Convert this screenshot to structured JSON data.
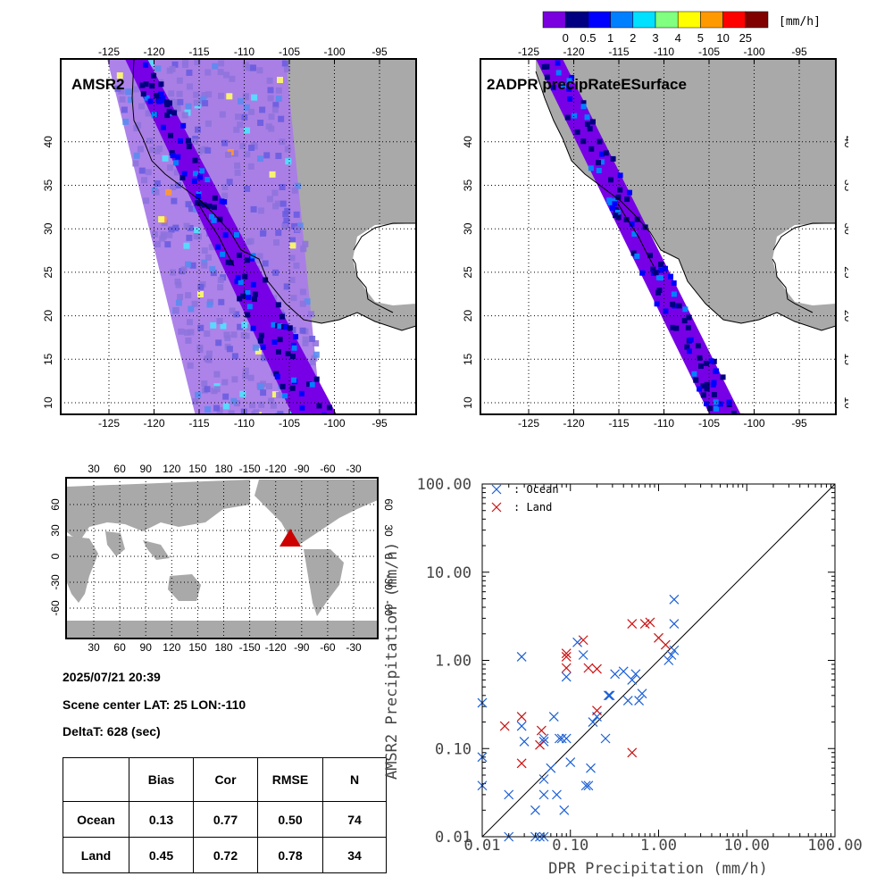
{
  "colorbar": {
    "unit": "[mm/h]",
    "tick_labels": [
      "0",
      "0.5",
      "1",
      "2",
      "3",
      "4",
      "5",
      "10",
      "25"
    ],
    "colors": [
      "#7b00e0",
      "#000080",
      "#0000ff",
      "#0080ff",
      "#00e0ff",
      "#80ff80",
      "#ffff00",
      "#ff9900",
      "#ff0000",
      "#800000"
    ]
  },
  "map_left": {
    "title": "AMSR2"
  },
  "map_right": {
    "title": "2ADPR precipRateESurface"
  },
  "map_axes": {
    "lon_labels": [
      "-125",
      "-120",
      "-115",
      "-110",
      "-105",
      "-100",
      "-95"
    ],
    "lat_labels": [
      "10",
      "15",
      "20",
      "25",
      "30",
      "35",
      "40"
    ]
  },
  "globe": {
    "top_lon_labels": [
      "30",
      "60",
      "90",
      "120",
      "150",
      "180",
      "-150",
      "-120",
      "-90",
      "-60",
      "-30"
    ],
    "bottom_lon_labels": [
      "30",
      "60",
      "90",
      "120",
      "150",
      "180",
      "-150",
      "-120",
      "-90",
      "-60",
      "-30"
    ],
    "lat_labels": [
      "60",
      "30",
      "0",
      "-30",
      "-60"
    ],
    "marker_color": "#cc0000"
  },
  "scene": {
    "datetime": "2025/07/21 20:39",
    "center": "Scene center LAT: 25   LON:-110",
    "delta": "DeltaT:  628 (sec)"
  },
  "stats": {
    "headers": [
      "",
      "Bias",
      "Cor",
      "RMSE",
      "N"
    ],
    "rows": [
      {
        "label": "Ocean",
        "bias": "0.13",
        "cor": "0.77",
        "rmse": "0.50",
        "n": "74"
      },
      {
        "label": "Land",
        "bias": "0.45",
        "cor": "0.72",
        "rmse": "0.78",
        "n": "34"
      }
    ]
  },
  "chart_data": {
    "type": "scatter",
    "xlabel": "DPR Precipitation (mm/h)",
    "ylabel": "AMSR2 Precipitation (mm/h)",
    "xscale": "log",
    "yscale": "log",
    "xlim": [
      0.01,
      100
    ],
    "ylim": [
      0.01,
      100
    ],
    "tick_labels": [
      "0.01",
      "0.10",
      "1.00",
      "10.00",
      "100.00"
    ],
    "reference_line": "1:1",
    "legend_position": "top-left",
    "series": [
      {
        "name": ": Ocean",
        "color": "#1a5fd6",
        "points": [
          [
            0.01,
            0.33
          ],
          [
            0.01,
            0.08
          ],
          [
            0.01,
            0.038
          ],
          [
            0.02,
            0.01
          ],
          [
            0.02,
            0.03
          ],
          [
            0.028,
            1.1
          ],
          [
            0.028,
            0.18
          ],
          [
            0.03,
            0.12
          ],
          [
            0.04,
            0.02
          ],
          [
            0.04,
            0.01
          ],
          [
            0.045,
            0.01
          ],
          [
            0.05,
            0.01
          ],
          [
            0.05,
            0.045
          ],
          [
            0.05,
            0.03
          ],
          [
            0.05,
            0.13
          ],
          [
            0.05,
            0.12
          ],
          [
            0.06,
            0.06
          ],
          [
            0.065,
            0.23
          ],
          [
            0.07,
            0.03
          ],
          [
            0.075,
            0.13
          ],
          [
            0.08,
            0.13
          ],
          [
            0.085,
            0.02
          ],
          [
            0.09,
            0.65
          ],
          [
            0.09,
            0.13
          ],
          [
            0.1,
            0.07
          ],
          [
            0.12,
            1.6
          ],
          [
            0.14,
            1.15
          ],
          [
            0.15,
            0.038
          ],
          [
            0.16,
            0.038
          ],
          [
            0.17,
            0.06
          ],
          [
            0.18,
            0.2
          ],
          [
            0.2,
            0.23
          ],
          [
            0.25,
            0.13
          ],
          [
            0.27,
            0.4
          ],
          [
            0.28,
            0.4
          ],
          [
            0.32,
            0.7
          ],
          [
            0.4,
            0.75
          ],
          [
            0.45,
            0.35
          ],
          [
            0.5,
            0.6
          ],
          [
            0.55,
            0.7
          ],
          [
            0.6,
            0.35
          ],
          [
            0.65,
            0.42
          ],
          [
            1.3,
            1.0
          ],
          [
            1.4,
            1.15
          ],
          [
            1.5,
            1.3
          ],
          [
            1.5,
            2.6
          ],
          [
            1.5,
            4.9
          ]
        ]
      },
      {
        "name": ": Land",
        "color": "#cc1111",
        "points": [
          [
            0.018,
            0.18
          ],
          [
            0.028,
            0.23
          ],
          [
            0.028,
            0.068
          ],
          [
            0.045,
            0.11
          ],
          [
            0.047,
            0.16
          ],
          [
            0.09,
            1.2
          ],
          [
            0.09,
            0.82
          ],
          [
            0.09,
            1.1
          ],
          [
            0.14,
            1.7
          ],
          [
            0.16,
            0.82
          ],
          [
            0.2,
            0.8
          ],
          [
            0.2,
            0.27
          ],
          [
            0.5,
            2.6
          ],
          [
            0.5,
            0.09
          ],
          [
            0.7,
            2.6
          ],
          [
            0.8,
            2.7
          ],
          [
            1.0,
            1.8
          ],
          [
            1.2,
            1.5
          ]
        ]
      }
    ]
  }
}
